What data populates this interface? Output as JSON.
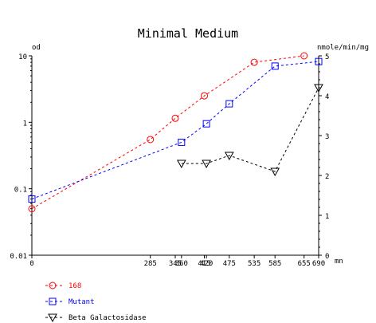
{
  "chart_data": {
    "type": "line",
    "title": "Minimal Medium",
    "xlabel": "mn",
    "ylabel_left": "od",
    "ylabel_right": "nmole/min/mg",
    "xlim": [
      0,
      690
    ],
    "x_ticks": [
      "0",
      "285",
      "345",
      "360",
      "415",
      "420",
      "475",
      "535",
      "585",
      "655",
      "690"
    ],
    "y_left_scale": "log",
    "y_left_lim": [
      0.01,
      10
    ],
    "y_left_ticks": [
      "0.01",
      "0.1",
      "1",
      "10"
    ],
    "y_right_lim": [
      0,
      5
    ],
    "y_right_ticks": [
      "0",
      "1",
      "2",
      "3",
      "4",
      "5"
    ],
    "grid": false,
    "legend_position": "bottom-left",
    "series": [
      {
        "name": "168",
        "axis": "left",
        "marker": "circle",
        "color": "#ff0000",
        "points": [
          [
            0,
            0.05
          ],
          [
            285,
            0.55
          ],
          [
            345,
            1.15
          ],
          [
            415,
            2.5
          ],
          [
            535,
            8.0
          ],
          [
            655,
            10.0
          ]
        ]
      },
      {
        "name": "Mutant",
        "axis": "left",
        "marker": "square",
        "color": "#0000ff",
        "points": [
          [
            0,
            0.07
          ],
          [
            360,
            0.5
          ],
          [
            420,
            0.95
          ],
          [
            475,
            1.9
          ],
          [
            585,
            7.0
          ],
          [
            690,
            8.2
          ]
        ]
      },
      {
        "name": "Beta Galactosidase",
        "axis": "right",
        "marker": "triangle-down",
        "color": "#000000",
        "points": [
          [
            360,
            2.3
          ],
          [
            420,
            2.3
          ],
          [
            475,
            2.5
          ],
          [
            585,
            2.1
          ],
          [
            690,
            4.2
          ]
        ]
      }
    ]
  }
}
